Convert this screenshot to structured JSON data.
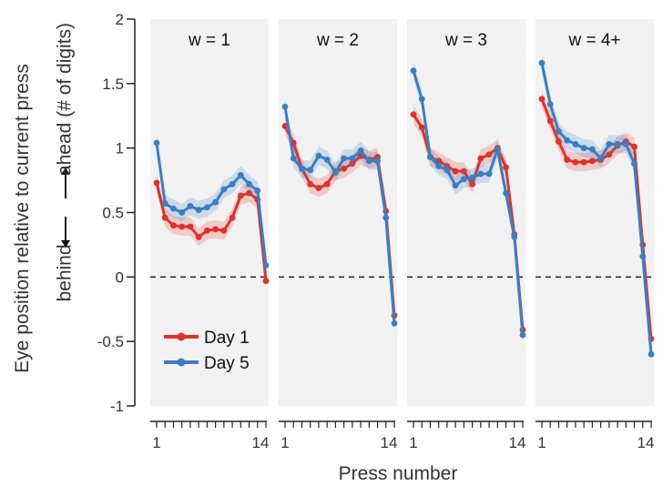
{
  "chart_data": {
    "type": "line",
    "panels": [
      {
        "title": "w = 1",
        "series": [
          {
            "name": "Day 1",
            "values": [
              0.73,
              0.46,
              0.4,
              0.39,
              0.39,
              0.31,
              0.36,
              0.37,
              0.36,
              0.46,
              0.63,
              0.65,
              0.6,
              -0.03
            ]
          },
          {
            "name": "Day 5",
            "values": [
              1.04,
              0.57,
              0.53,
              0.5,
              0.55,
              0.52,
              0.54,
              0.58,
              0.68,
              0.72,
              0.79,
              0.72,
              0.67,
              0.09
            ]
          }
        ]
      },
      {
        "title": "w = 2",
        "series": [
          {
            "name": "Day 1",
            "values": [
              1.17,
              1.04,
              0.84,
              0.72,
              0.69,
              0.72,
              0.82,
              0.84,
              0.88,
              0.94,
              0.91,
              0.93,
              0.51,
              -0.3
            ]
          },
          {
            "name": "Day 5",
            "values": [
              1.32,
              0.92,
              0.84,
              0.83,
              0.94,
              0.91,
              0.81,
              0.92,
              0.92,
              0.98,
              0.9,
              0.9,
              0.46,
              -0.36
            ]
          }
        ]
      },
      {
        "title": "w = 3",
        "series": [
          {
            "name": "Day 1",
            "values": [
              1.26,
              1.16,
              0.93,
              0.9,
              0.86,
              0.82,
              0.82,
              0.72,
              0.92,
              0.95,
              1.0,
              0.85,
              0.33,
              -0.41
            ]
          },
          {
            "name": "Day 5",
            "values": [
              1.6,
              1.38,
              0.93,
              0.86,
              0.83,
              0.71,
              0.76,
              0.77,
              0.8,
              0.8,
              0.99,
              0.65,
              0.31,
              -0.45
            ]
          }
        ]
      },
      {
        "title": "w = 4+",
        "series": [
          {
            "name": "Day 1",
            "values": [
              1.38,
              1.21,
              1.05,
              0.91,
              0.89,
              0.89,
              0.9,
              0.91,
              0.95,
              1.02,
              1.05,
              1.01,
              0.25,
              -0.48
            ]
          },
          {
            "name": "Day 5",
            "values": [
              1.66,
              1.34,
              1.13,
              1.06,
              1.03,
              1.0,
              0.99,
              0.92,
              1.03,
              1.03,
              1.03,
              0.88,
              0.16,
              -0.6
            ]
          }
        ]
      }
    ],
    "band_halfwidth": 0.07,
    "x": [
      1,
      2,
      3,
      4,
      5,
      6,
      7,
      8,
      9,
      10,
      11,
      12,
      13,
      14
    ],
    "x_tick_labels": [
      "1",
      "14"
    ],
    "xlabel": "Press number",
    "ylabel": "Eye position relative to current press",
    "ylabel2": "ahead (# of digits)",
    "ylabel_behind": "behind",
    "y_ticks": [
      -1,
      -0.5,
      0,
      0.5,
      1,
      1.5,
      2
    ],
    "y_tick_labels": [
      "-1",
      "-0.5",
      "0",
      "0.5",
      "1",
      "1.5",
      "2"
    ],
    "ylim": [
      -1,
      2
    ],
    "reference_line": 0,
    "legend": [
      {
        "name": "Day 1",
        "color": "#e0312a"
      },
      {
        "name": "Day 5",
        "color": "#3a7fc4"
      }
    ],
    "legend_position": "lower-left",
    "colors": {
      "day1": "#e0312a",
      "day5": "#3a7fc4",
      "panel_bg": "#f2f2f2"
    }
  }
}
